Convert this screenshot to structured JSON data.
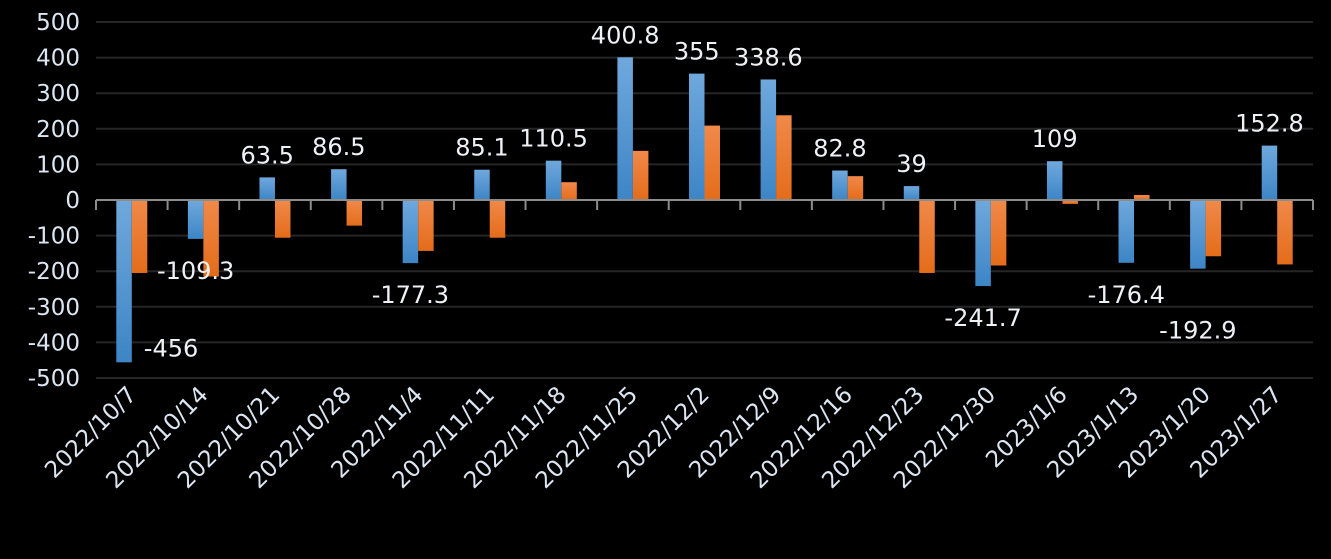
{
  "chart_data": {
    "type": "bar",
    "title": "",
    "xlabel": "",
    "ylabel": "",
    "ylim": [
      -500,
      500
    ],
    "yticks": [
      -500,
      -400,
      -300,
      -200,
      -100,
      0,
      100,
      200,
      300,
      400,
      500
    ],
    "grid": true,
    "legend": "none",
    "categories": [
      "2022/10/7",
      "2022/10/14",
      "2022/10/21",
      "2022/10/28",
      "2022/11/4",
      "2022/11/11",
      "2022/11/18",
      "2022/11/25",
      "2022/12/2",
      "2022/12/9",
      "2022/12/16",
      "2022/12/23",
      "2022/12/30",
      "2023/1/6",
      "2023/1/13",
      "2023/1/20",
      "2023/1/27"
    ],
    "series": [
      {
        "color": "#5b9bd5",
        "labeled": true,
        "values": [
          -456,
          -109.3,
          63.5,
          86.5,
          -177.3,
          85.1,
          110.5,
          400.8,
          355,
          338.6,
          82.8,
          39,
          -241.7,
          109,
          -176.4,
          -192.9,
          152.8
        ]
      },
      {
        "color": "#ed7d31",
        "labeled": false,
        "values": [
          -205,
          -215,
          -106,
          -72,
          -143,
          -106,
          50,
          138,
          209,
          238,
          67,
          -205,
          -184,
          -11,
          14,
          -158,
          -181
        ]
      }
    ]
  }
}
